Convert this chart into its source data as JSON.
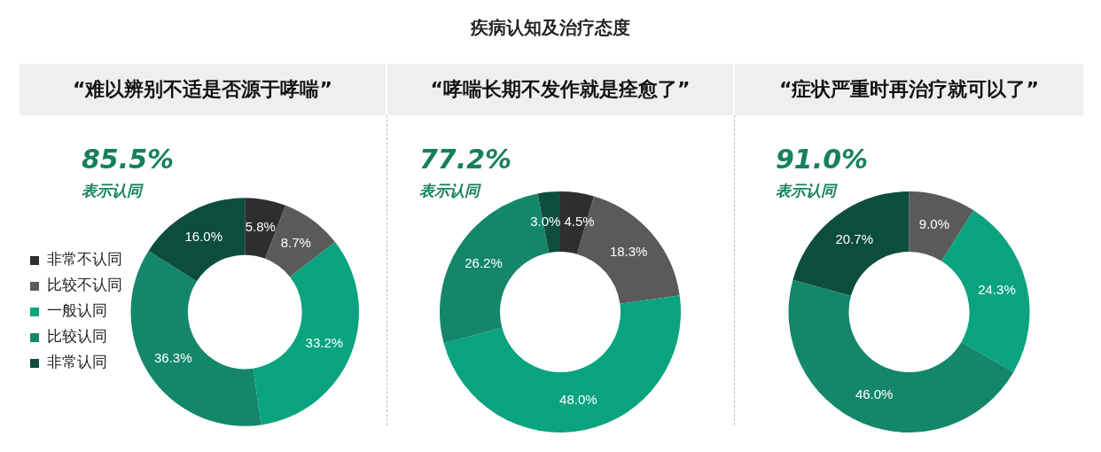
{
  "chart_data": [
    {
      "type": "other",
      "title": "疾病认知及治疗态度"
    },
    {
      "type": "donut",
      "title": "“难以辨别不适是否源于哮喘”",
      "annotations": [
        "85.5%",
        "表示认同"
      ],
      "categories": [
        "非常不认同",
        "比较不认同",
        "一般认同",
        "比较认同",
        "非常认同"
      ],
      "values": [
        5.8,
        8.7,
        33.2,
        36.3,
        16.0
      ],
      "value_labels": [
        "5.8%",
        "8.7%",
        "33.2%",
        "36.3%",
        "16.0%"
      ],
      "colors": [
        "#2e2e2e",
        "#5a5a5a",
        "#0aa37f",
        "#14876a",
        "#0c4d3c"
      ],
      "legend": "left"
    },
    {
      "type": "donut",
      "title": "“哮喘长期不发作就是痊愈了”",
      "annotations": [
        "77.2%",
        "表示认同"
      ],
      "categories": [
        null,
        null,
        null,
        null,
        null
      ],
      "values": [
        4.5,
        18.3,
        48.0,
        26.2,
        3.0
      ],
      "value_labels": [
        "4.5%",
        "18.3%",
        "48.0%",
        "26.2%",
        "3.0%"
      ],
      "colors": [
        "#2e2e2e",
        "#5a5a5a",
        "#0aa37f",
        "#14876a",
        "#0c4d3c"
      ]
    },
    {
      "type": "donut",
      "title": "“症状严重时再治疗就可以了”",
      "annotations": [
        "91.0%",
        "表示认同"
      ],
      "categories": [
        null,
        null,
        null,
        null,
        null
      ],
      "values": [
        0,
        9.0,
        24.3,
        46.0,
        20.7
      ],
      "value_labels": [
        null,
        "9.0%",
        "24.3%",
        "46.0%",
        "20.7%"
      ],
      "colors": [
        "#2e2e2e",
        "#5a5a5a",
        "#0aa37f",
        "#14876a",
        "#0c4d3c"
      ]
    }
  ]
}
